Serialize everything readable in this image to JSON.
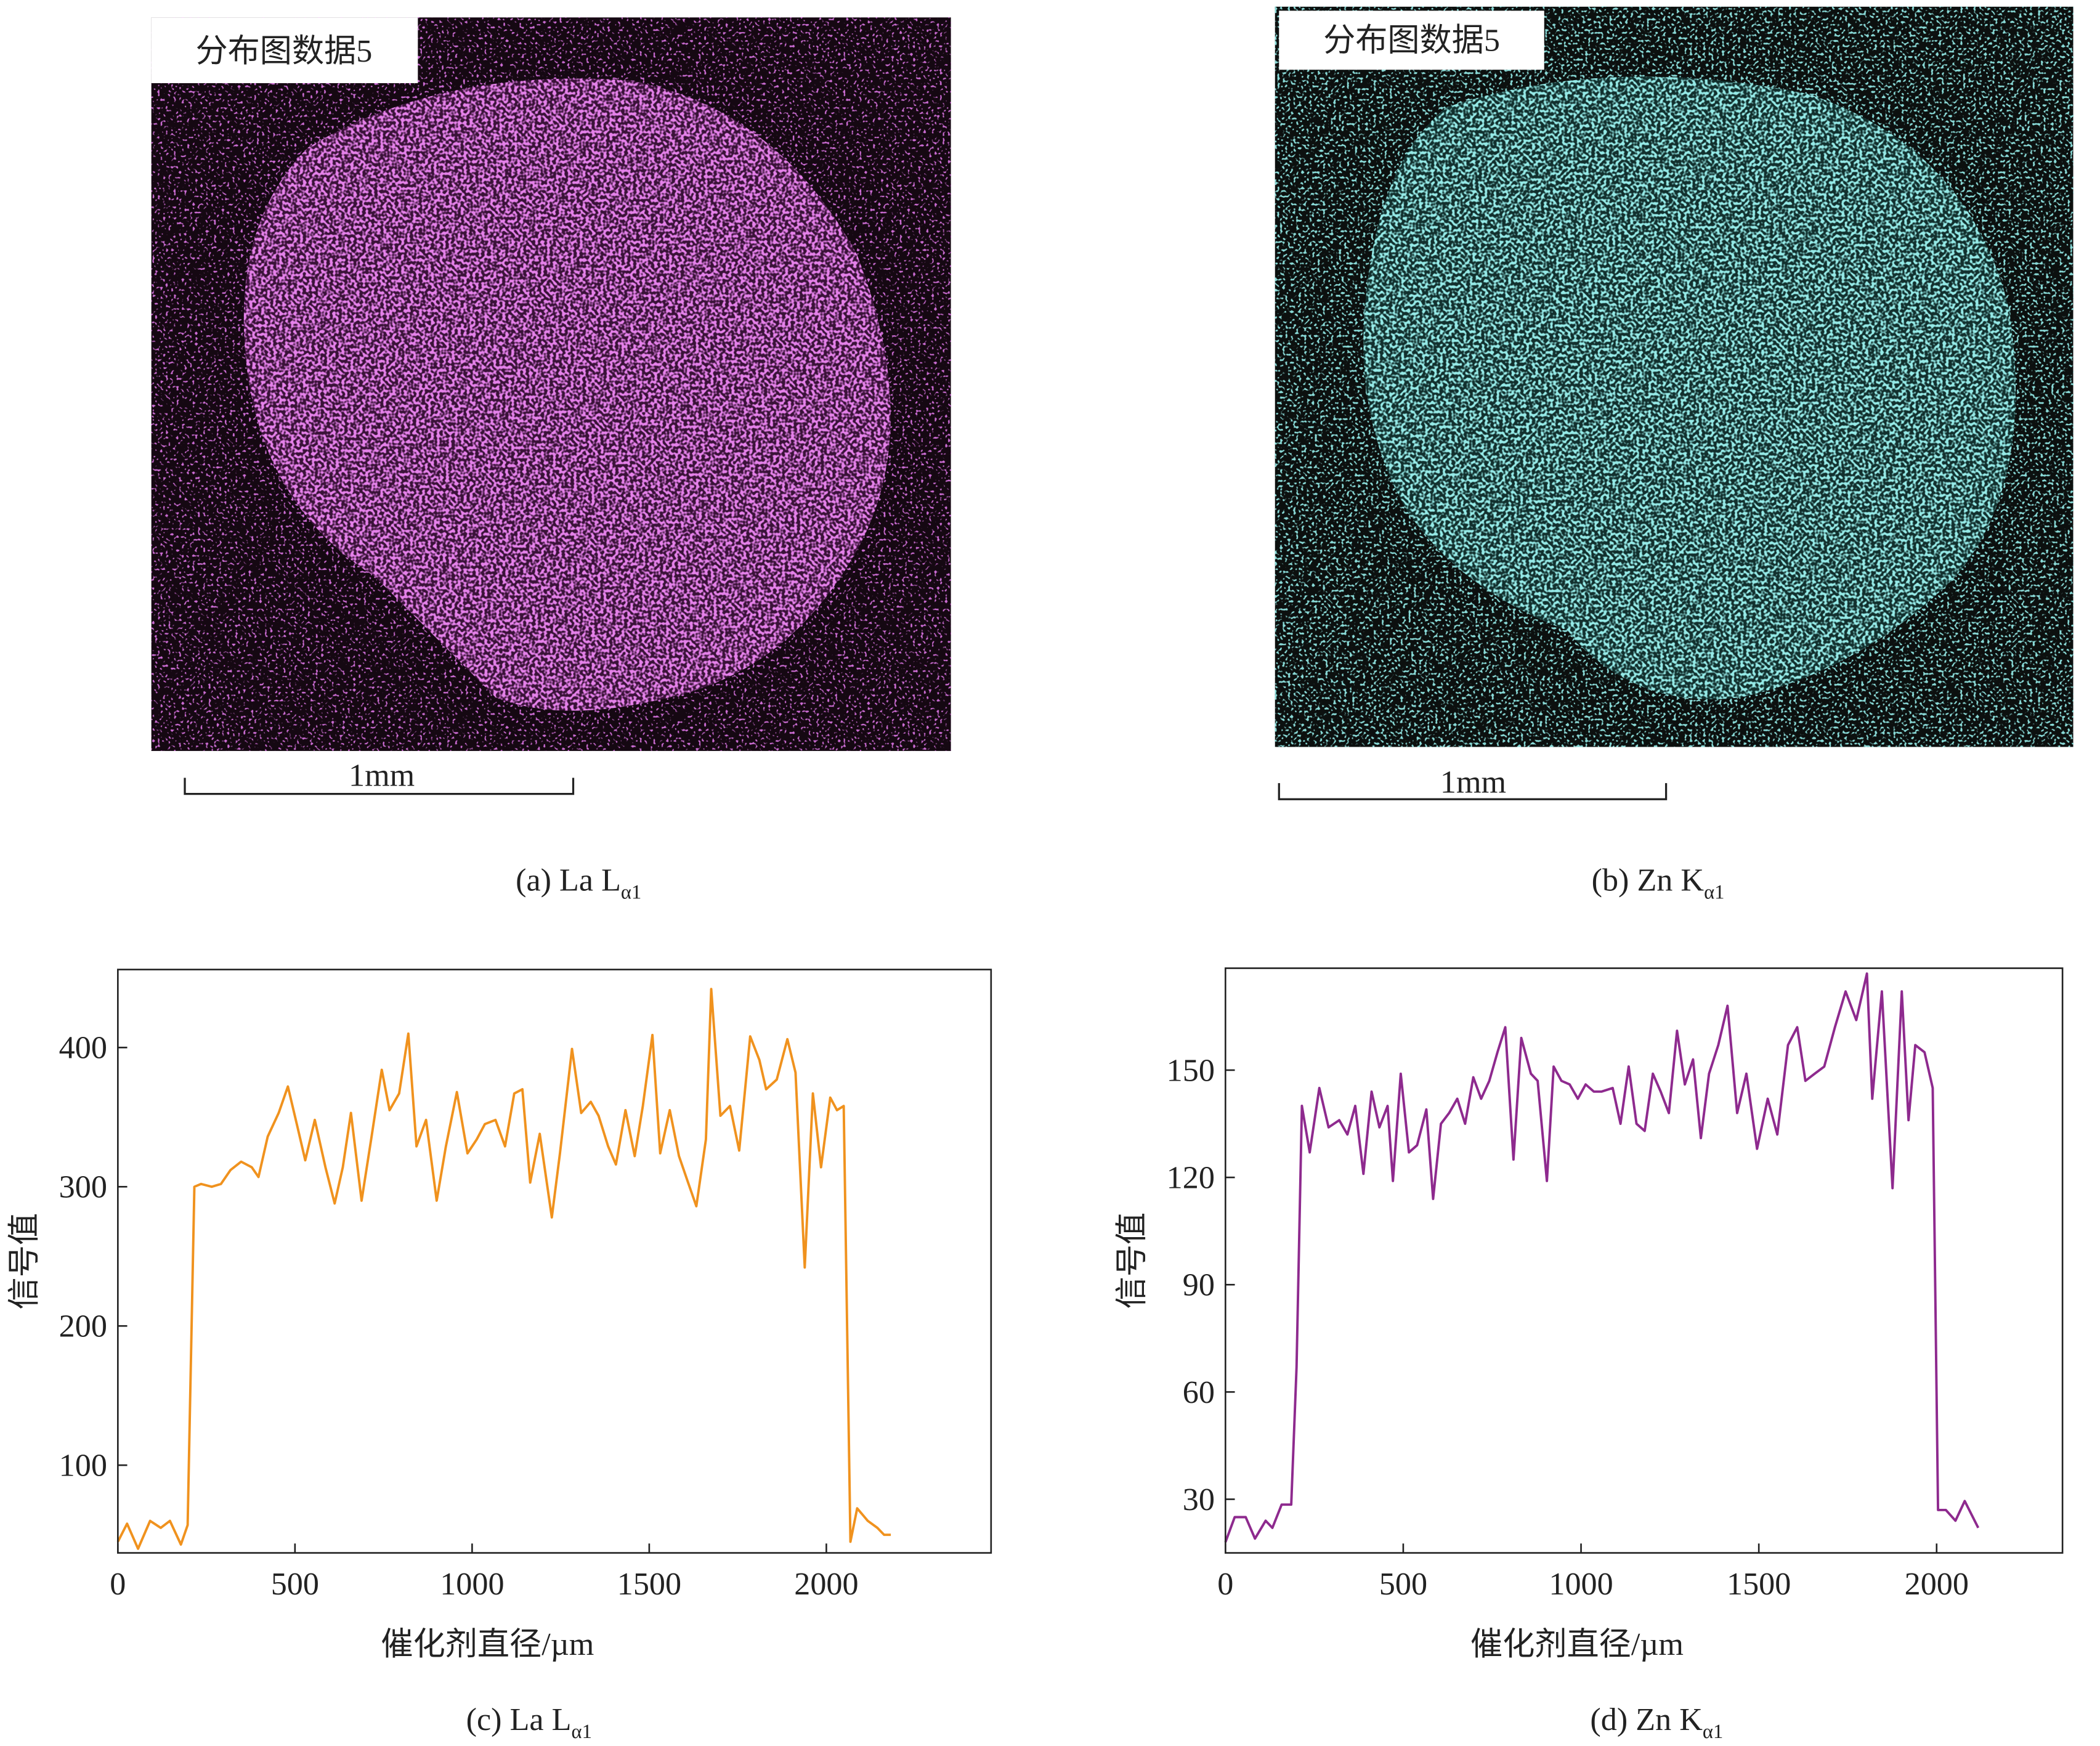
{
  "maps": [
    {
      "label": "分布图数据5",
      "scale": "1mm",
      "caption": "(a) La L",
      "caption_sub": "α1"
    },
    {
      "label": "分布图数据5",
      "scale": "1mm",
      "caption": "(b) Zn K",
      "caption_sub": "α1"
    }
  ],
  "chart_data": [
    {
      "type": "line",
      "xlabel": "催化剂直径/µm",
      "ylabel": "信号值",
      "caption": "(c) La L",
      "caption_sub": "α1",
      "color": "#f0921e",
      "xlim": [
        0,
        2465
      ],
      "ylim": [
        37,
        456
      ],
      "xticks": [
        0,
        500,
        1000,
        1500,
        2000
      ],
      "yticks": [
        100,
        200,
        300,
        400
      ],
      "x": [
        0,
        26,
        57,
        91,
        121,
        147,
        178,
        197,
        216,
        235,
        265,
        291,
        318,
        348,
        378,
        397,
        423,
        454,
        480,
        507,
        529,
        556,
        586,
        612,
        635,
        658,
        688,
        715,
        745,
        767,
        794,
        820,
        843,
        870,
        900,
        926,
        957,
        987,
        1013,
        1036,
        1066,
        1093,
        1119,
        1142,
        1164,
        1191,
        1225,
        1248,
        1282,
        1308,
        1335,
        1357,
        1384,
        1406,
        1433,
        1459,
        1482,
        1509,
        1531,
        1558,
        1584,
        1607,
        1633,
        1660,
        1675,
        1701,
        1728,
        1754,
        1785,
        1811,
        1830,
        1860,
        1890,
        1913,
        1939,
        1962,
        1985,
        2011,
        2030,
        2049,
        2068,
        2087,
        2117,
        2144,
        2163,
        2182
      ],
      "values": [
        45,
        58,
        40,
        60,
        55,
        60,
        43,
        57,
        300,
        302,
        300,
        302,
        312,
        318,
        314,
        307,
        336,
        353,
        372,
        343,
        319,
        348,
        314,
        288,
        314,
        353,
        290,
        334,
        384,
        355,
        367,
        410,
        329,
        348,
        290,
        329,
        368,
        324,
        334,
        345,
        348,
        329,
        367,
        370,
        303,
        338,
        278,
        324,
        399,
        353,
        361,
        351,
        329,
        316,
        355,
        322,
        358,
        409,
        324,
        355,
        322,
        305,
        286,
        334,
        442,
        351,
        358,
        326,
        408,
        391,
        370,
        377,
        406,
        382,
        242,
        367,
        314,
        364,
        355,
        358,
        45,
        69,
        60,
        55,
        50,
        50
      ]
    },
    {
      "type": "line",
      "xlabel": "催化剂直径/µm",
      "ylabel": "信号值",
      "caption": "(d) Zn K",
      "caption_sub": "α1",
      "color": "#8e2a8e",
      "xlim": [
        0,
        2354
      ],
      "ylim": [
        15,
        178.5
      ],
      "xticks": [
        0,
        500,
        1000,
        1500,
        2000
      ],
      "yticks": [
        30,
        60,
        90,
        120,
        150
      ],
      "x": [
        0,
        26,
        57,
        83,
        113,
        132,
        158,
        185,
        200,
        215,
        237,
        264,
        290,
        320,
        343,
        365,
        388,
        411,
        433,
        456,
        471,
        493,
        516,
        539,
        565,
        584,
        606,
        629,
        652,
        674,
        697,
        719,
        742,
        765,
        787,
        810,
        832,
        859,
        878,
        904,
        923,
        945,
        968,
        991,
        1013,
        1036,
        1058,
        1089,
        1111,
        1134,
        1156,
        1179,
        1202,
        1224,
        1247,
        1270,
        1292,
        1315,
        1337,
        1360,
        1386,
        1412,
        1439,
        1465,
        1495,
        1525,
        1552,
        1582,
        1608,
        1631,
        1657,
        1684,
        1714,
        1744,
        1774,
        1804,
        1819,
        1846,
        1876,
        1902,
        1921,
        1940,
        1966,
        1989,
        2004,
        2026,
        2053,
        2079,
        2117
      ],
      "values": [
        18,
        25,
        25,
        19,
        24,
        22,
        28.5,
        28.5,
        67,
        140,
        127,
        145,
        134,
        136,
        132,
        140,
        121,
        144,
        134,
        140,
        119,
        149,
        127,
        129,
        139,
        114,
        135,
        138,
        142,
        135,
        148,
        142,
        147,
        155,
        162,
        125,
        159,
        149,
        147,
        119,
        151,
        147,
        146,
        142,
        146,
        144,
        144,
        145,
        135,
        151,
        135,
        133,
        149,
        144,
        138,
        161,
        146,
        153,
        131,
        149,
        157,
        168,
        138,
        149,
        128,
        142,
        132,
        157,
        162,
        147,
        149,
        151,
        162,
        172,
        164,
        177,
        142,
        172,
        117,
        172,
        136,
        157,
        155,
        145,
        27,
        27,
        24,
        29.5,
        22
      ]
    }
  ]
}
